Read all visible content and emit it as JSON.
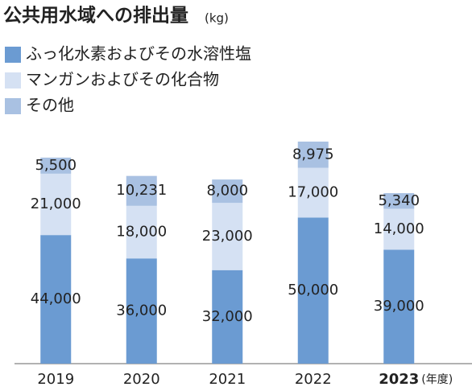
{
  "chart_data": {
    "type": "stacked_bar",
    "title": "公共用水域への排出量",
    "unit": "(kg)",
    "categories": [
      "2019",
      "2020",
      "2021",
      "2022",
      "2023"
    ],
    "x_label": "(年度)",
    "series": [
      {
        "name": "ふっ化水素およびその水溶性塩",
        "color": "#6b9bd2",
        "values": [
          44000,
          36000,
          32000,
          50000,
          39000
        ],
        "value_labels": [
          "44,000",
          "36,000",
          "32,000",
          "50,000",
          "39,000"
        ]
      },
      {
        "name": "マンガンおよびその化合物",
        "color": "#d5e1f3",
        "values": [
          21000,
          18000,
          23000,
          17000,
          14000
        ],
        "value_labels": [
          "21,000",
          "18,000",
          "23,000",
          "17,000",
          "14,000"
        ]
      },
      {
        "name": "その他",
        "color": "#a9c1e2",
        "values": [
          5500,
          10231,
          8000,
          8975,
          5340
        ],
        "value_labels": [
          "5,500",
          "10,231",
          "8,000",
          "8,975",
          "5,340"
        ]
      }
    ]
  }
}
